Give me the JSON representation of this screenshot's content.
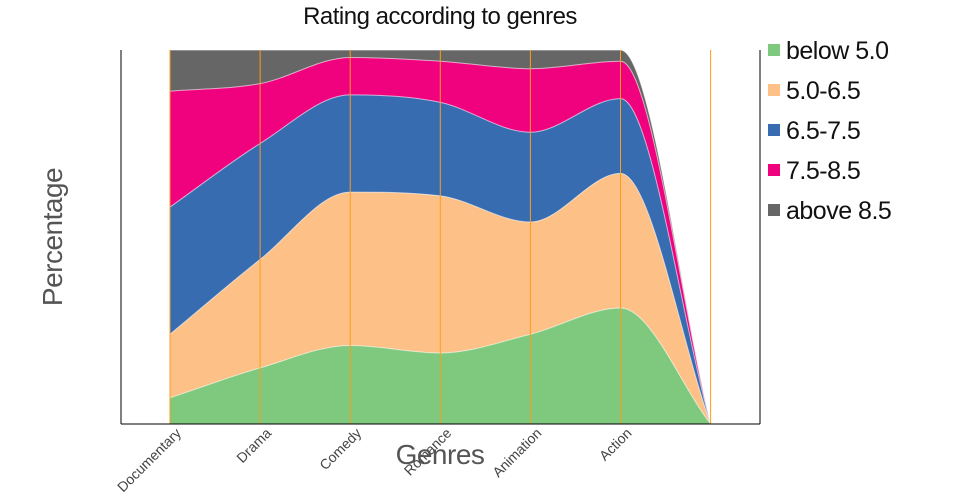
{
  "chart_data": {
    "type": "area",
    "stacked": true,
    "normalized": true,
    "title": "Rating according to genres",
    "xlabel": "Genres",
    "ylabel": "Percentage",
    "categories": [
      "Documentary",
      "Drama",
      "Comedy",
      "Romance",
      "Animation",
      "Action",
      ""
    ],
    "ylim": [
      0,
      100
    ],
    "series": [
      {
        "name": "below 5.0",
        "color": "#7fc97f",
        "values": [
          7,
          15,
          21,
          19,
          24,
          31,
          0
        ]
      },
      {
        "name": "5.0-6.5",
        "color": "#fdc086",
        "values": [
          17,
          29,
          41,
          42,
          30,
          36,
          0
        ]
      },
      {
        "name": "6.5-7.5",
        "color": "#386cb0",
        "values": [
          34,
          31,
          26,
          25,
          24,
          20,
          0
        ]
      },
      {
        "name": "7.5-8.5",
        "color": "#f0027f",
        "values": [
          31,
          16,
          10,
          11,
          17,
          10,
          0
        ]
      },
      {
        "name": "above 8.5",
        "color": "#666666",
        "values": [
          11,
          9,
          2,
          3,
          5,
          3,
          0
        ]
      }
    ],
    "gridline_color": "#ff9c1a",
    "legend_position": "right"
  }
}
